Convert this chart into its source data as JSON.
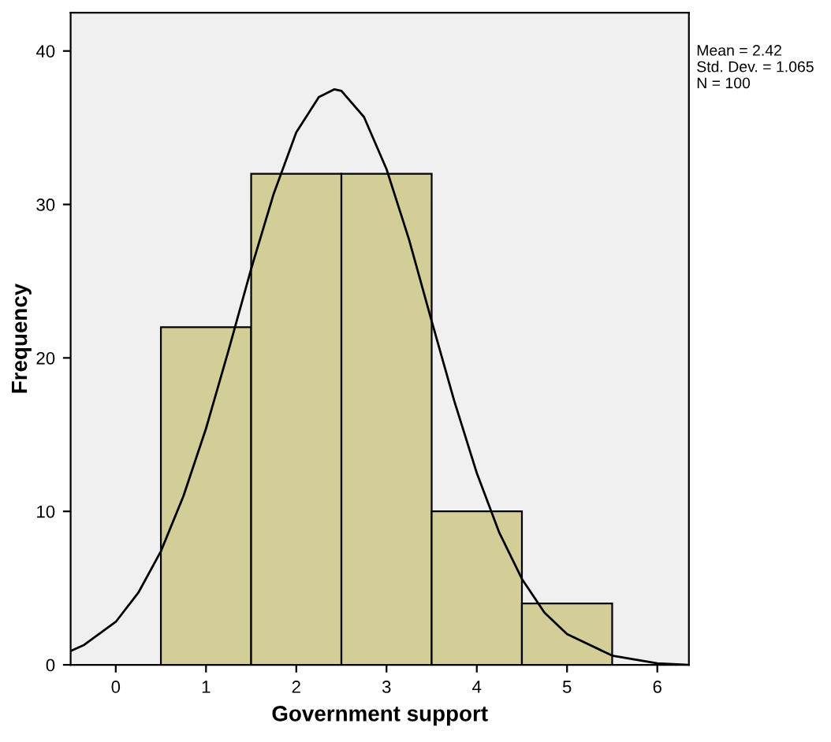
{
  "chart_data": {
    "type": "histogram",
    "xlabel": "Government support",
    "ylabel": "Frequency",
    "bins": [
      0.5,
      1.5,
      2.5,
      3.5,
      4.5,
      5.5
    ],
    "values": [
      22,
      32,
      32,
      10,
      4
    ],
    "color": "#d3ce97",
    "series": [
      {
        "type": "line",
        "color": "#000000",
        "x": [
          -0.5,
          -0.35,
          0,
          0.25,
          0.5,
          0.75,
          1,
          1.25,
          1.5,
          1.75,
          2,
          2.25,
          2.42,
          2.5,
          2.75,
          3,
          3.25,
          3.5,
          3.75,
          4,
          4.25,
          4.5,
          4.75,
          5,
          5.5,
          6,
          6.35
        ],
        "values": [
          0.9,
          1.3,
          2.8,
          4.7,
          7.4,
          11,
          15.4,
          20.5,
          25.8,
          30.7,
          34.7,
          37,
          37.5,
          37.4,
          35.7,
          32.3,
          27.7,
          22.4,
          17.2,
          12.5,
          8.6,
          5.6,
          3.4,
          2,
          0.6,
          0.1,
          0
        ]
      }
    ],
    "xlim": [
      -0.5,
      6.35
    ],
    "ylim": [
      0,
      42.5
    ],
    "xticks": [
      0,
      1,
      2,
      3,
      4,
      5,
      6
    ],
    "yticks": [
      0,
      10,
      20,
      30,
      40
    ],
    "grid": false,
    "legend": false,
    "marker": "none",
    "line_style": "solid",
    "annotations": [
      "Mean = 2.42",
      "Std. Dev. = 1.065",
      "N = 100"
    ]
  }
}
